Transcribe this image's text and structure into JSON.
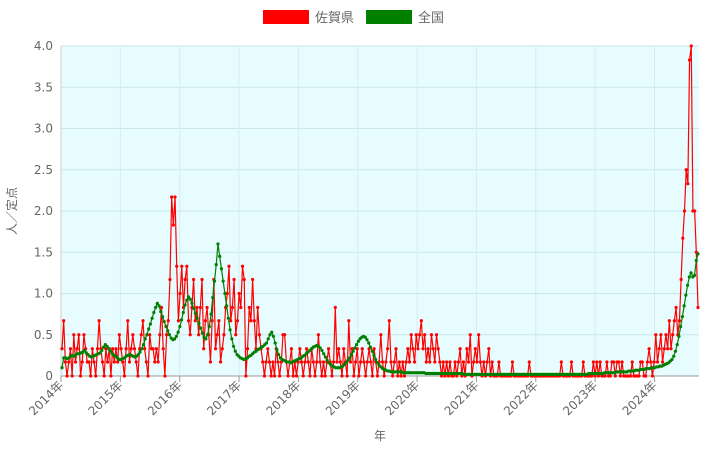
{
  "chart_data": {
    "type": "line",
    "xlabel": "年",
    "ylabel": "人／定点",
    "ylim": [
      0,
      4.0
    ],
    "yticks": [
      "0",
      "0.5",
      "1.0",
      "1.5",
      "2.0",
      "2.5",
      "3.0",
      "3.5",
      "4.0"
    ],
    "xticks": [
      "2014年",
      "2015年",
      "2016年",
      "2017年",
      "2018年",
      "2019年",
      "2020年",
      "2021年",
      "2022年",
      "2023年",
      "2024年"
    ],
    "x_unit": "週 (2014年第1週〜2024年)",
    "grid": true,
    "legend_position": "top-center",
    "plot_background": "#e6fcfe",
    "series": [
      {
        "name": "佐賀県",
        "color": "#ff0000",
        "values": [
          0.33,
          0.67,
          0.17,
          0.0,
          0.17,
          0.33,
          0.0,
          0.5,
          0.17,
          0.33,
          0.5,
          0.0,
          0.17,
          0.5,
          0.33,
          0.17,
          0.17,
          0.0,
          0.33,
          0.17,
          0.0,
          0.33,
          0.67,
          0.33,
          0.17,
          0.0,
          0.33,
          0.17,
          0.33,
          0.0,
          0.33,
          0.17,
          0.33,
          0.17,
          0.5,
          0.33,
          0.17,
          0.0,
          0.33,
          0.67,
          0.17,
          0.33,
          0.5,
          0.33,
          0.17,
          0.0,
          0.33,
          0.5,
          0.67,
          0.33,
          0.17,
          0.0,
          0.5,
          0.33,
          0.33,
          0.17,
          0.33,
          0.17,
          0.5,
          0.83,
          0.33,
          0.0,
          0.5,
          0.67,
          1.17,
          2.17,
          1.83,
          2.17,
          1.33,
          0.67,
          1.0,
          1.33,
          0.83,
          1.17,
          1.33,
          0.67,
          0.5,
          0.83,
          1.17,
          0.67,
          0.83,
          0.5,
          0.83,
          1.17,
          0.33,
          0.67,
          0.83,
          0.5,
          0.17,
          0.67,
          1.17,
          0.33,
          0.5,
          0.67,
          0.17,
          0.33,
          0.5,
          0.83,
          1.0,
          1.33,
          0.67,
          0.83,
          1.17,
          0.5,
          0.67,
          1.0,
          0.83,
          1.33,
          1.17,
          0.0,
          0.33,
          0.83,
          0.67,
          1.17,
          0.67,
          0.33,
          0.83,
          0.5,
          0.33,
          0.17,
          0.0,
          0.17,
          0.33,
          0.17,
          0.0,
          0.17,
          0.0,
          0.33,
          0.17,
          0.0,
          0.17,
          0.5,
          0.5,
          0.17,
          0.0,
          0.17,
          0.33,
          0.0,
          0.17,
          0.0,
          0.17,
          0.33,
          0.17,
          0.0,
          0.17,
          0.33,
          0.17,
          0.0,
          0.33,
          0.17,
          0.0,
          0.17,
          0.5,
          0.17,
          0.0,
          0.17,
          0.0,
          0.17,
          0.33,
          0.17,
          0.0,
          0.17,
          0.83,
          0.17,
          0.33,
          0.17,
          0.0,
          0.33,
          0.17,
          0.0,
          0.67,
          0.17,
          0.33,
          0.0,
          0.17,
          0.33,
          0.0,
          0.17,
          0.33,
          0.17,
          0.0,
          0.17,
          0.33,
          0.17,
          0.0,
          0.33,
          0.17,
          0.0,
          0.17,
          0.5,
          0.17,
          0.0,
          0.17,
          0.33,
          0.67,
          0.17,
          0.0,
          0.17,
          0.33,
          0.0,
          0.17,
          0.0,
          0.17,
          0.0,
          0.17,
          0.33,
          0.17,
          0.5,
          0.33,
          0.17,
          0.5,
          0.33,
          0.5,
          0.67,
          0.33,
          0.5,
          0.17,
          0.33,
          0.17,
          0.5,
          0.33,
          0.17,
          0.5,
          0.33,
          0.17,
          0.0,
          0.17,
          0.0,
          0.17,
          0.0,
          0.17,
          0.0,
          0.0,
          0.17,
          0.0,
          0.17,
          0.33,
          0.0,
          0.17,
          0.0,
          0.33,
          0.17,
          0.5,
          0.0,
          0.17,
          0.33,
          0.17,
          0.5,
          0.17,
          0.0,
          0.17,
          0.0,
          0.17,
          0.33,
          0.0,
          0.17,
          0.0,
          0.0,
          0.0,
          0.17,
          0.0,
          0.0,
          0.0,
          0.0,
          0.0,
          0.0,
          0.0,
          0.17,
          0.0,
          0.0,
          0.0,
          0.0,
          0.0,
          0.0,
          0.0,
          0.0,
          0.0,
          0.17,
          0.0,
          0.0,
          0.0,
          0.0,
          0.0,
          0.0,
          0.0,
          0.0,
          0.0,
          0.0,
          0.0,
          0.0,
          0.0,
          0.0,
          0.0,
          0.0,
          0.0,
          0.0,
          0.17,
          0.0,
          0.0,
          0.0,
          0.0,
          0.0,
          0.17,
          0.0,
          0.0,
          0.0,
          0.0,
          0.0,
          0.0,
          0.17,
          0.0,
          0.0,
          0.0,
          0.0,
          0.0,
          0.17,
          0.0,
          0.17,
          0.0,
          0.17,
          0.0,
          0.0,
          0.0,
          0.17,
          0.0,
          0.0,
          0.17,
          0.17,
          0.0,
          0.17,
          0.17,
          0.0,
          0.17,
          0.0,
          0.0,
          0.0,
          0.0,
          0.0,
          0.17,
          0.0,
          0.0,
          0.0,
          0.0,
          0.17,
          0.17,
          0.0,
          0.0,
          0.17,
          0.33,
          0.17,
          0.0,
          0.17,
          0.5,
          0.17,
          0.33,
          0.5,
          0.17,
          0.33,
          0.5,
          0.33,
          0.67,
          0.33,
          0.5,
          0.67,
          0.83,
          0.5,
          0.67,
          1.17,
          1.67,
          2.0,
          2.5,
          2.33,
          3.83,
          4.0,
          2.0,
          2.0,
          1.5,
          0.83
        ]
      },
      {
        "name": "全国",
        "color": "#008000",
        "values": [
          0.1,
          0.22,
          0.22,
          0.21,
          0.22,
          0.24,
          0.25,
          0.24,
          0.26,
          0.27,
          0.27,
          0.28,
          0.29,
          0.31,
          0.28,
          0.26,
          0.24,
          0.23,
          0.24,
          0.25,
          0.26,
          0.27,
          0.28,
          0.31,
          0.35,
          0.38,
          0.36,
          0.33,
          0.3,
          0.27,
          0.25,
          0.24,
          0.22,
          0.2,
          0.2,
          0.21,
          0.22,
          0.24,
          0.25,
          0.26,
          0.25,
          0.24,
          0.23,
          0.24,
          0.26,
          0.29,
          0.33,
          0.38,
          0.45,
          0.5,
          0.57,
          0.63,
          0.7,
          0.77,
          0.83,
          0.88,
          0.85,
          0.78,
          0.72,
          0.66,
          0.6,
          0.55,
          0.5,
          0.46,
          0.44,
          0.45,
          0.48,
          0.53,
          0.6,
          0.68,
          0.77,
          0.86,
          0.92,
          0.96,
          0.93,
          0.88,
          0.82,
          0.76,
          0.7,
          0.64,
          0.58,
          0.52,
          0.47,
          0.45,
          0.5,
          0.6,
          0.75,
          0.95,
          1.15,
          1.35,
          1.6,
          1.45,
          1.3,
          1.15,
          1.0,
          0.85,
          0.7,
          0.56,
          0.45,
          0.36,
          0.3,
          0.26,
          0.24,
          0.22,
          0.21,
          0.2,
          0.21,
          0.22,
          0.24,
          0.25,
          0.27,
          0.29,
          0.3,
          0.32,
          0.33,
          0.35,
          0.36,
          0.38,
          0.4,
          0.45,
          0.5,
          0.53,
          0.48,
          0.4,
          0.32,
          0.26,
          0.22,
          0.2,
          0.19,
          0.18,
          0.17,
          0.17,
          0.16,
          0.17,
          0.18,
          0.19,
          0.2,
          0.21,
          0.22,
          0.24,
          0.25,
          0.27,
          0.29,
          0.31,
          0.33,
          0.35,
          0.36,
          0.37,
          0.36,
          0.34,
          0.31,
          0.27,
          0.23,
          0.19,
          0.16,
          0.14,
          0.12,
          0.11,
          0.1,
          0.1,
          0.1,
          0.11,
          0.12,
          0.14,
          0.16,
          0.19,
          0.22,
          0.26,
          0.3,
          0.34,
          0.38,
          0.42,
          0.45,
          0.47,
          0.48,
          0.47,
          0.44,
          0.4,
          0.35,
          0.3,
          0.25,
          0.2,
          0.16,
          0.13,
          0.11,
          0.09,
          0.08,
          0.07,
          0.06,
          0.06,
          0.05,
          0.05,
          0.05,
          0.05,
          0.05,
          0.05,
          0.05,
          0.04,
          0.04,
          0.04,
          0.04,
          0.04,
          0.04,
          0.04,
          0.04,
          0.04,
          0.04,
          0.04,
          0.04,
          0.04,
          0.03,
          0.03,
          0.03,
          0.03,
          0.03,
          0.03,
          0.03,
          0.03,
          0.03,
          0.03,
          0.03,
          0.03,
          0.03,
          0.03,
          0.03,
          0.03,
          0.03,
          0.03,
          0.03,
          0.03,
          0.03,
          0.03,
          0.02,
          0.02,
          0.02,
          0.02,
          0.02,
          0.02,
          0.02,
          0.02,
          0.02,
          0.02,
          0.02,
          0.02,
          0.02,
          0.02,
          0.02,
          0.02,
          0.02,
          0.02,
          0.02,
          0.02,
          0.02,
          0.02,
          0.02,
          0.02,
          0.02,
          0.02,
          0.02,
          0.02,
          0.02,
          0.02,
          0.02,
          0.02,
          0.02,
          0.02,
          0.02,
          0.02,
          0.02,
          0.02,
          0.02,
          0.02,
          0.02,
          0.02,
          0.02,
          0.02,
          0.02,
          0.02,
          0.02,
          0.02,
          0.02,
          0.02,
          0.02,
          0.02,
          0.02,
          0.02,
          0.02,
          0.02,
          0.02,
          0.02,
          0.02,
          0.02,
          0.02,
          0.02,
          0.02,
          0.02,
          0.02,
          0.02,
          0.02,
          0.02,
          0.02,
          0.02,
          0.02,
          0.02,
          0.03,
          0.03,
          0.03,
          0.03,
          0.03,
          0.03,
          0.03,
          0.03,
          0.03,
          0.04,
          0.04,
          0.04,
          0.04,
          0.04,
          0.04,
          0.04,
          0.05,
          0.05,
          0.05,
          0.05,
          0.05,
          0.05,
          0.05,
          0.06,
          0.06,
          0.06,
          0.06,
          0.07,
          0.07,
          0.07,
          0.08,
          0.08,
          0.08,
          0.09,
          0.09,
          0.09,
          0.1,
          0.1,
          0.1,
          0.11,
          0.11,
          0.12,
          0.12,
          0.13,
          0.14,
          0.15,
          0.16,
          0.18,
          0.2,
          0.24,
          0.3,
          0.38,
          0.48,
          0.6,
          0.72,
          0.85,
          0.98,
          1.1,
          1.2,
          1.25,
          1.2,
          1.22,
          1.4,
          1.48
        ]
      }
    ]
  }
}
